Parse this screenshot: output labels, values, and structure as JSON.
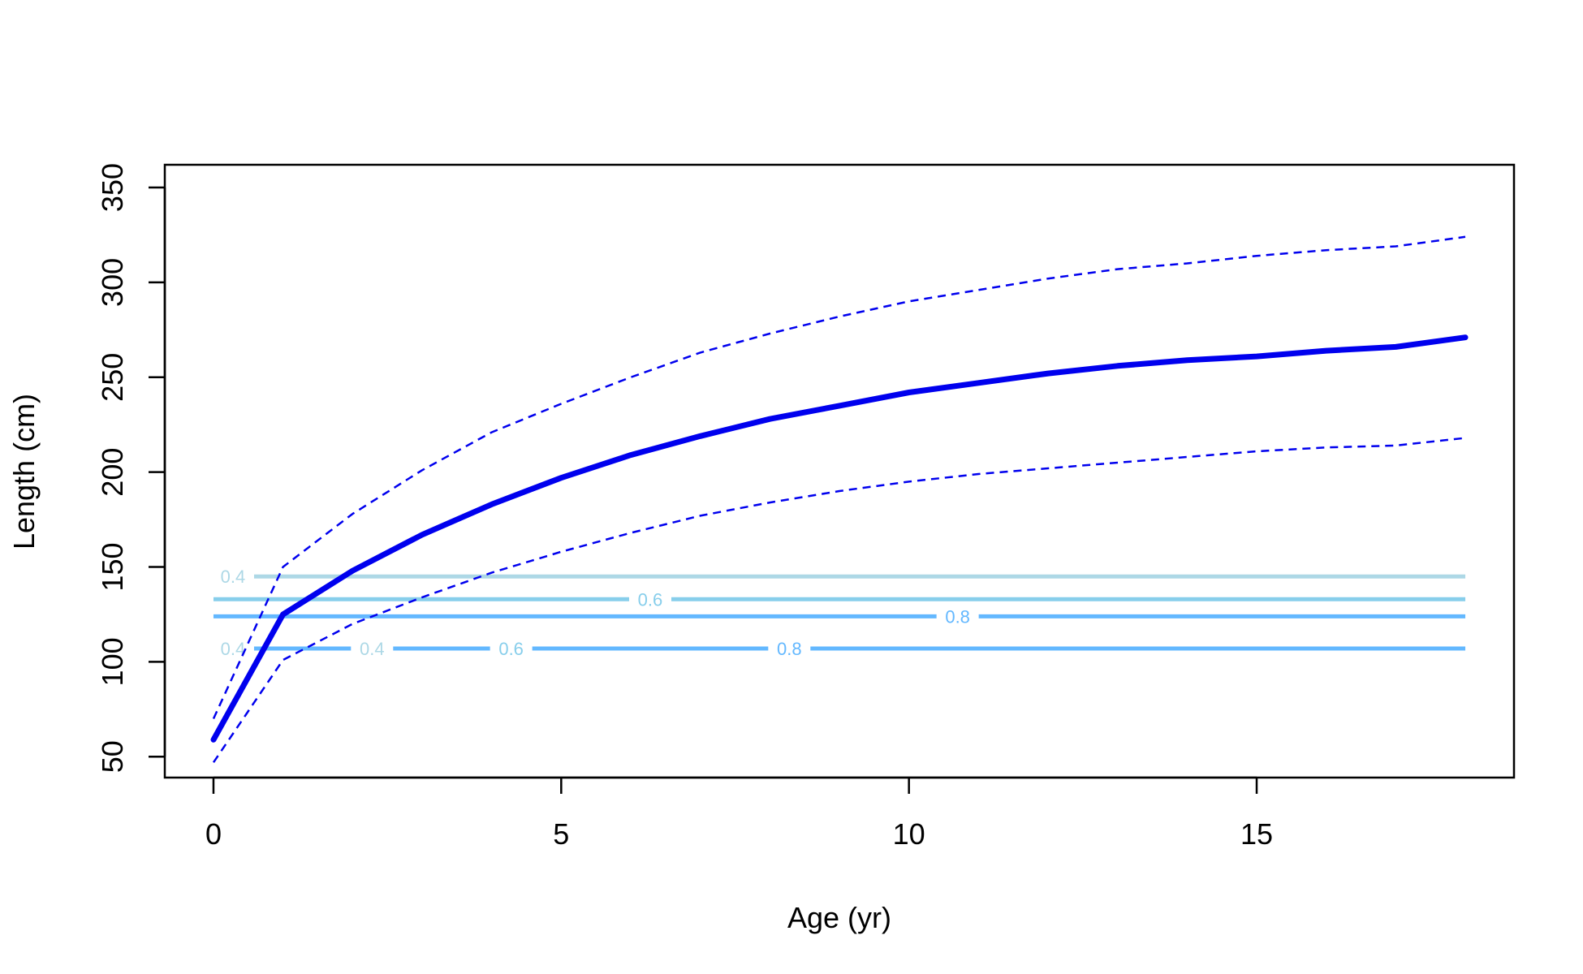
{
  "chart_data": {
    "type": "line",
    "xlabel": "Age (yr)",
    "ylabel": "Length (cm)",
    "xlim": [
      -0.7,
      18.7
    ],
    "ylim": [
      39,
      362
    ],
    "x_ticks": [
      0,
      5,
      10,
      15
    ],
    "y_ticks": [
      50,
      100,
      150,
      200,
      250,
      300,
      350
    ],
    "x_tick_labels": [
      "0",
      "5",
      "10",
      "15"
    ],
    "y_tick_labels": [
      "50",
      "100",
      "150",
      "200",
      "250",
      "300",
      "350"
    ],
    "grid": false,
    "series": [
      {
        "style": "solid-thick",
        "color": "#0000ee",
        "x": [
          0,
          1,
          2,
          3,
          4,
          5,
          6,
          7,
          8,
          9,
          10,
          11,
          12,
          13,
          14,
          15,
          16,
          17,
          18
        ],
        "y": [
          59,
          125,
          148,
          167,
          183,
          197,
          209,
          219,
          228,
          235,
          242,
          247,
          252,
          256,
          259,
          261,
          264,
          266,
          271
        ]
      },
      {
        "style": "dashed",
        "color": "#0000ee",
        "x": [
          0,
          1,
          2,
          3,
          4,
          5,
          6,
          7,
          8,
          9,
          10,
          11,
          12,
          13,
          14,
          15,
          16,
          17,
          18
        ],
        "y": [
          70,
          150,
          178,
          201,
          221,
          236,
          250,
          263,
          273,
          282,
          290,
          296,
          302,
          307,
          310,
          314,
          317,
          319,
          324
        ]
      },
      {
        "style": "dashed",
        "color": "#0000ee",
        "x": [
          0,
          1,
          2,
          3,
          4,
          5,
          6,
          7,
          8,
          9,
          10,
          11,
          12,
          13,
          14,
          15,
          16,
          17,
          18
        ],
        "y": [
          47,
          101,
          120,
          134,
          147,
          158,
          168,
          177,
          184,
          190,
          195,
          199,
          202,
          205,
          208,
          211,
          213,
          214,
          218
        ]
      }
    ],
    "contour_lines": [
      {
        "y": 145,
        "color": "#add8e6",
        "x_start": 0,
        "x_end": 18,
        "labels": [
          {
            "text": "0.4",
            "x": 0.28
          }
        ]
      },
      {
        "y": 133,
        "color": "#87ceeb",
        "x_start": 0,
        "x_end": 18,
        "labels": [
          {
            "text": "0.6",
            "x": 6.28
          }
        ]
      },
      {
        "y": 124,
        "color": "#63b8ff",
        "x_start": 0,
        "x_end": 18,
        "labels": [
          {
            "text": "0.8",
            "x": 10.7
          }
        ]
      },
      {
        "y": 107,
        "color": "#63b8ff",
        "x_start": 0,
        "x_end": 18,
        "labels": [
          {
            "text": "0.4",
            "x": 0.28,
            "color": "#add8e6"
          },
          {
            "text": "0.4",
            "x": 2.28,
            "color": "#add8e6"
          },
          {
            "text": "0.6",
            "x": 4.28,
            "color": "#87ceeb"
          },
          {
            "text": "0.8",
            "x": 8.28,
            "color": "#63b8ff"
          }
        ]
      }
    ]
  }
}
